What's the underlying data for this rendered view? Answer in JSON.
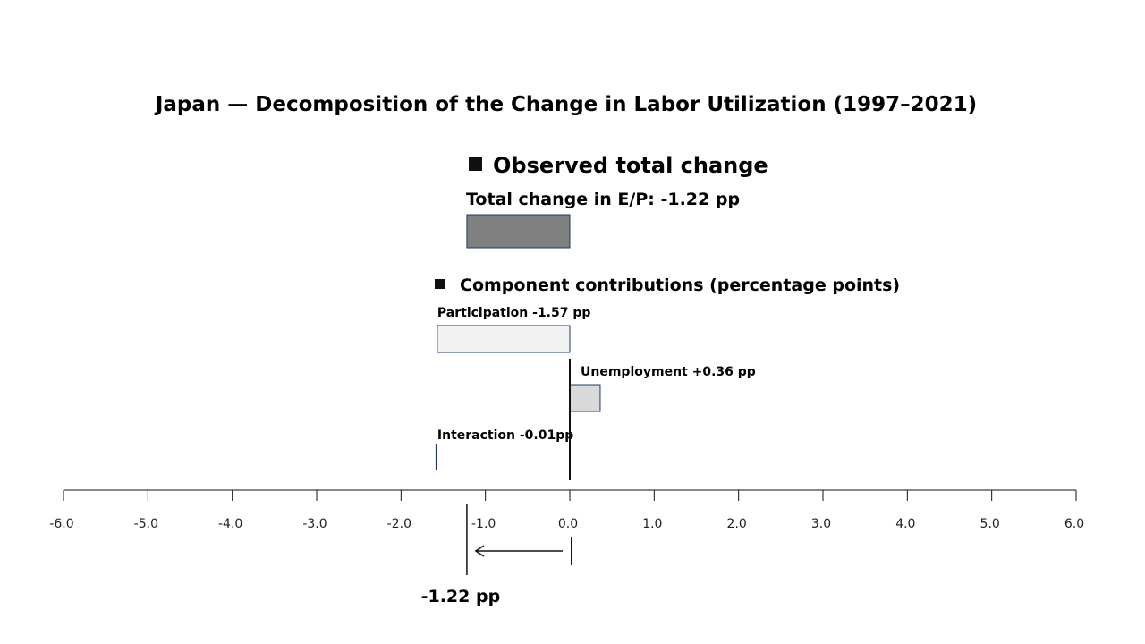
{
  "chart_data": {
    "type": "bar",
    "title": "Japan — Decomposition of the Change in Labor Utilization (1997–2021)",
    "xlim": [
      -6.0,
      6.0
    ],
    "tick_labels": [
      "-6.0",
      "-5.0",
      "-4.0",
      "-3.0",
      "-2.0",
      "-1.0",
      "0.0",
      "1.0",
      "2.0",
      "3.0",
      "4.0",
      "5.0",
      "6.0"
    ],
    "total": {
      "section_label": "Observed total change",
      "label": "Total change in E/P: -1.22 pp",
      "value": -1.22,
      "color": "#808080"
    },
    "components_section_label": "Component contributions (percentage points)",
    "components": [
      {
        "name": "Participation",
        "label": "Participation -1.57 pp",
        "value": -1.57,
        "color": "#f2f2f2"
      },
      {
        "name": "Unemployment",
        "label": "Unemployment +0.36 pp",
        "value": 0.36,
        "color": "#d9d9d9"
      },
      {
        "name": "Interaction",
        "label": "Interaction -0.01pp",
        "value": -0.01,
        "color": "#1f3864"
      }
    ],
    "result_label": "-1.22 pp",
    "result_value": -1.22,
    "bar_edge_color": "#1f3864",
    "grid": false
  }
}
